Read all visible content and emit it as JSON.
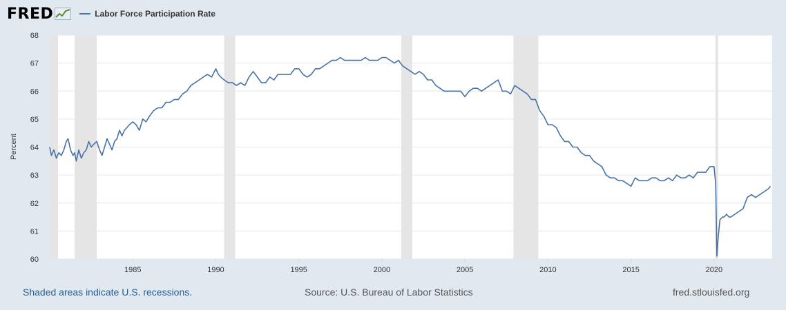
{
  "header": {
    "logo_text": "FRED",
    "legend_label": "Labor Force Participation Rate",
    "series_color": "#4572a7"
  },
  "footer": {
    "recession_note": "Shaded areas indicate U.S. recessions.",
    "source": "Source: U.S. Bureau of Labor Statistics",
    "site": "fred.stlouisfed.org"
  },
  "chart_data": {
    "type": "line",
    "title": "",
    "xlabel": "",
    "ylabel": "Percent",
    "xlim": [
      1980.0,
      2023.5
    ],
    "ylim": [
      60,
      68
    ],
    "y_ticks": [
      60,
      61,
      62,
      63,
      64,
      65,
      66,
      67,
      68
    ],
    "x_ticks": [
      1985,
      1990,
      1995,
      2000,
      2005,
      2010,
      2015,
      2020
    ],
    "grid": "horizontal",
    "background_color": "#ffffff",
    "recession_color": "#e5e5e5",
    "recessions": [
      [
        1980.0,
        1980.5
      ],
      [
        1981.5,
        1982.83
      ],
      [
        1990.5,
        1991.17
      ],
      [
        2001.17,
        2001.83
      ],
      [
        2007.92,
        2009.42
      ],
      [
        2020.08,
        2020.25
      ]
    ],
    "series": [
      {
        "name": "Labor Force Participation Rate",
        "x": [
          1980.0,
          1980.1,
          1980.25,
          1980.4,
          1980.55,
          1980.7,
          1980.85,
          1981.0,
          1981.1,
          1981.25,
          1981.4,
          1981.5,
          1981.6,
          1981.75,
          1981.9,
          1982.05,
          1982.2,
          1982.35,
          1982.5,
          1982.65,
          1982.83,
          1983.0,
          1983.15,
          1983.3,
          1983.45,
          1983.6,
          1983.75,
          1983.9,
          1984.05,
          1984.2,
          1984.35,
          1984.5,
          1984.65,
          1984.8,
          1985.0,
          1985.2,
          1985.4,
          1985.6,
          1985.8,
          1986.0,
          1986.25,
          1986.5,
          1986.75,
          1987.0,
          1987.25,
          1987.5,
          1987.75,
          1988.0,
          1988.25,
          1988.5,
          1988.75,
          1989.0,
          1989.25,
          1989.5,
          1989.75,
          1990.0,
          1990.15,
          1990.3,
          1990.5,
          1990.75,
          1991.0,
          1991.25,
          1991.5,
          1991.75,
          1992.0,
          1992.25,
          1992.5,
          1992.75,
          1993.0,
          1993.25,
          1993.5,
          1993.75,
          1994.0,
          1994.25,
          1994.5,
          1994.75,
          1995.0,
          1995.25,
          1995.5,
          1995.75,
          1996.0,
          1996.25,
          1996.5,
          1996.75,
          1997.0,
          1997.25,
          1997.5,
          1997.75,
          1998.0,
          1998.25,
          1998.5,
          1998.75,
          1999.0,
          1999.25,
          1999.5,
          1999.75,
          2000.0,
          2000.25,
          2000.5,
          2000.75,
          2001.0,
          2001.25,
          2001.5,
          2001.75,
          2002.0,
          2002.25,
          2002.5,
          2002.75,
          2003.0,
          2003.25,
          2003.5,
          2003.75,
          2004.0,
          2004.25,
          2004.5,
          2004.75,
          2005.0,
          2005.25,
          2005.5,
          2005.75,
          2006.0,
          2006.25,
          2006.5,
          2006.75,
          2007.0,
          2007.25,
          2007.5,
          2007.75,
          2008.0,
          2008.25,
          2008.5,
          2008.75,
          2009.0,
          2009.25,
          2009.5,
          2009.75,
          2010.0,
          2010.25,
          2010.5,
          2010.75,
          2011.0,
          2011.25,
          2011.5,
          2011.75,
          2012.0,
          2012.25,
          2012.5,
          2012.75,
          2013.0,
          2013.25,
          2013.5,
          2013.75,
          2014.0,
          2014.25,
          2014.5,
          2014.75,
          2015.0,
          2015.25,
          2015.5,
          2015.75,
          2016.0,
          2016.25,
          2016.5,
          2016.75,
          2017.0,
          2017.25,
          2017.5,
          2017.75,
          2018.0,
          2018.25,
          2018.5,
          2018.75,
          2019.0,
          2019.25,
          2019.5,
          2019.75,
          2020.0,
          2020.1,
          2020.17,
          2020.25,
          2020.35,
          2020.5,
          2020.6,
          2020.75,
          2020.9,
          2021.0,
          2021.25,
          2021.5,
          2021.75,
          2022.0,
          2022.25,
          2022.5,
          2022.75,
          2023.0,
          2023.25,
          2023.4
        ],
        "values": [
          64.0,
          63.7,
          63.9,
          63.6,
          63.8,
          63.7,
          63.9,
          64.2,
          64.3,
          63.9,
          63.7,
          63.8,
          63.5,
          63.9,
          63.6,
          63.8,
          63.9,
          64.2,
          64.0,
          64.1,
          64.2,
          63.9,
          63.7,
          64.0,
          64.3,
          64.1,
          63.9,
          64.2,
          64.3,
          64.6,
          64.4,
          64.6,
          64.7,
          64.8,
          64.9,
          64.8,
          64.6,
          65.0,
          64.9,
          65.1,
          65.3,
          65.4,
          65.4,
          65.6,
          65.6,
          65.7,
          65.7,
          65.9,
          66.0,
          66.2,
          66.3,
          66.4,
          66.5,
          66.6,
          66.5,
          66.8,
          66.6,
          66.5,
          66.4,
          66.3,
          66.3,
          66.2,
          66.3,
          66.2,
          66.5,
          66.7,
          66.5,
          66.3,
          66.3,
          66.5,
          66.4,
          66.6,
          66.6,
          66.6,
          66.6,
          66.8,
          66.8,
          66.6,
          66.5,
          66.6,
          66.8,
          66.8,
          66.9,
          67.0,
          67.1,
          67.1,
          67.2,
          67.1,
          67.1,
          67.1,
          67.1,
          67.1,
          67.2,
          67.1,
          67.1,
          67.1,
          67.2,
          67.2,
          67.1,
          67.0,
          67.1,
          66.9,
          66.8,
          66.7,
          66.6,
          66.7,
          66.6,
          66.4,
          66.4,
          66.2,
          66.1,
          66.0,
          66.0,
          66.0,
          66.0,
          66.0,
          65.8,
          66.0,
          66.1,
          66.1,
          66.0,
          66.1,
          66.2,
          66.3,
          66.4,
          66.0,
          66.0,
          65.9,
          66.2,
          66.1,
          66.0,
          65.9,
          65.7,
          65.7,
          65.3,
          65.1,
          64.8,
          64.8,
          64.7,
          64.4,
          64.2,
          64.2,
          64.0,
          64.0,
          63.8,
          63.7,
          63.7,
          63.5,
          63.4,
          63.3,
          63.0,
          62.9,
          62.9,
          62.8,
          62.8,
          62.7,
          62.6,
          62.9,
          62.8,
          62.8,
          62.8,
          62.9,
          62.9,
          62.8,
          62.8,
          62.9,
          62.8,
          63.0,
          62.9,
          62.9,
          63.0,
          62.9,
          63.1,
          63.1,
          63.1,
          63.3,
          63.3,
          62.7,
          60.1,
          60.8,
          61.4,
          61.5,
          61.5,
          61.6,
          61.5,
          61.5,
          61.6,
          61.7,
          61.8,
          62.2,
          62.3,
          62.2,
          62.3,
          62.4,
          62.5,
          62.6
        ]
      }
    ]
  }
}
